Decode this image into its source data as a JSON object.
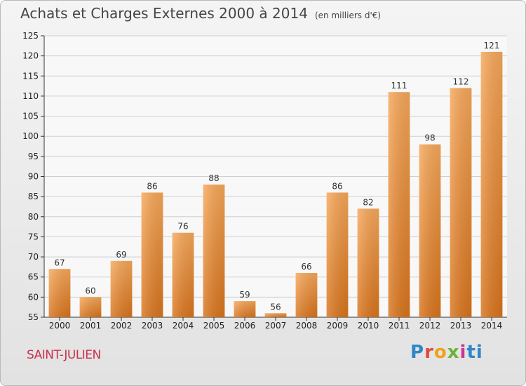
{
  "chart_data": {
    "type": "bar",
    "title": "Achats et Charges Externes 2000 à 2014",
    "subtitle": "(en milliers d'€)",
    "categories": [
      "2000",
      "2001",
      "2002",
      "2003",
      "2004",
      "2005",
      "2006",
      "2007",
      "2008",
      "2009",
      "2010",
      "2011",
      "2012",
      "2013",
      "2014"
    ],
    "values": [
      67,
      60,
      69,
      86,
      76,
      88,
      59,
      56,
      66,
      86,
      82,
      111,
      98,
      112,
      121
    ],
    "ylim": [
      55,
      125
    ],
    "yticks": [
      55,
      60,
      65,
      70,
      75,
      80,
      85,
      90,
      95,
      100,
      105,
      110,
      115,
      120,
      125
    ],
    "grid": true,
    "bar_color_top": "#f7a85a",
    "bar_color_bottom": "#d9741c"
  },
  "footer": {
    "place": "SAINT-JULIEN",
    "logo_parts": [
      "P",
      "r",
      "o",
      "x",
      "i",
      "ti"
    ]
  }
}
